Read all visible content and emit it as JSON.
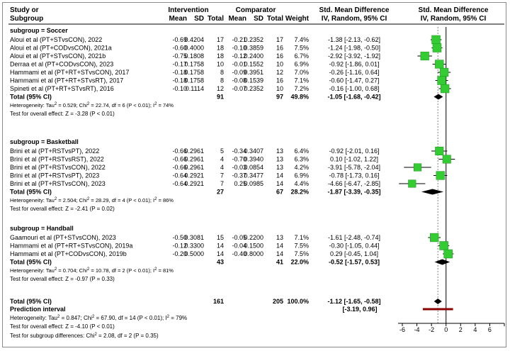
{
  "colors": {
    "study_marker": "#33cc33",
    "pooled_marker": "#000000",
    "prediction_bar": "#8b0000",
    "null_line": "#000000",
    "overall_line": "#808080"
  },
  "headers": {
    "study_1": "Study or",
    "study_2": "Subgroup",
    "intervention": "Intervention",
    "comparator": "Comparator",
    "mean_i": "Mean",
    "sd_i": "SD",
    "total_i": "Total",
    "mean_c": "Mean",
    "sd_c": "SD",
    "total_c": "Total",
    "weight": "Weight",
    "smd_text_1": "Std. Mean Difference",
    "smd_text_2": "IV, Random, 95% CI",
    "smd_plot_1": "Std. Mean Difference",
    "smd_plot_2": "IV, Random, 95% CI"
  },
  "chart_data": {
    "type": "forest",
    "xlim": [
      -6,
      8
    ],
    "x_ticks": [
      -6,
      -4,
      -2,
      0,
      2,
      4,
      6,
      8
    ],
    "x_tick_labels": [
      "-6",
      "-4",
      "-2",
      "0",
      "2",
      "4",
      "6",
      "8"
    ],
    "null_line": 0,
    "overall_line": -1.12,
    "subgroups": [
      {
        "title": "subgroup = Soccer",
        "studies": [
          {
            "name": "Aloui et al (PT+STvsCON), 2022",
            "mean_i": "-0.69",
            "sd_i": "0.4204",
            "n_i": "17",
            "mean_c": "-0.21",
            "sd_c": "0.2352",
            "n_c": "17",
            "weight": "7.4%",
            "smd": -1.38,
            "lo": -2.13,
            "hi": -0.62,
            "ci_text": "-1.38 [-2.13, -0.62]"
          },
          {
            "name": "Aloui et al (PT+CODvsCON), 2021a",
            "mean_i": "-0.60",
            "sd_i": "0.4000",
            "n_i": "18",
            "mean_c": "-0.10",
            "sd_c": "0.3859",
            "n_c": "16",
            "weight": "7.5%",
            "smd": -1.24,
            "lo": -1.98,
            "hi": -0.5,
            "ci_text": "-1.24 [-1.98, -0.50]"
          },
          {
            "name": "Aloui et al (PT+STvsCON), 2021b",
            "mean_i": "-0.75",
            "sd_i": "0.1808",
            "n_i": "18",
            "mean_c": "-0.12",
            "sd_c": "0.2400",
            "n_c": "16",
            "weight": "6.7%",
            "smd": -2.92,
            "lo": -3.92,
            "hi": -1.92,
            "ci_text": "-2.92 [-3.92, -1.92]"
          },
          {
            "name": "Derraa et al (PT+CODvsCON), 2023",
            "mean_i": "-0.17",
            "sd_i": "0.1758",
            "n_i": "10",
            "mean_c": "-0.01",
            "sd_c": "0.1552",
            "n_c": "10",
            "weight": "6.9%",
            "smd": -0.92,
            "lo": -1.86,
            "hi": 0.01,
            "ci_text": "-0.92 [-1.86, 0.01]"
          },
          {
            "name": "Hammami et al (PT+RT+STvsCON), 2017",
            "mean_i": "-0.18",
            "sd_i": "0.1758",
            "n_i": "8",
            "mean_c": "-0.09",
            "sd_c": "0.3951",
            "n_c": "12",
            "weight": "7.0%",
            "smd": -0.26,
            "lo": -1.16,
            "hi": 0.64,
            "ci_text": "-0.26 [-1.16, 0.64]"
          },
          {
            "name": "Hammami et al (PT+RT+STvsRT), 2017",
            "mean_i": "-0.18",
            "sd_i": "0.1758",
            "n_i": "8",
            "mean_c": "-0.08",
            "sd_c": "0.1539",
            "n_c": "16",
            "weight": "7.1%",
            "smd": -0.6,
            "lo": -1.47,
            "hi": 0.27,
            "ci_text": "-0.60 [-1.47, 0.27]"
          },
          {
            "name": "Spineti et al (PT+RT+STvsRT), 2016",
            "mean_i": "-0.10",
            "sd_i": "0.1114",
            "n_i": "12",
            "mean_c": "-0.07",
            "sd_c": "0.2352",
            "n_c": "10",
            "weight": "7.2%",
            "smd": -0.16,
            "lo": -1.0,
            "hi": 0.68,
            "ci_text": "-0.16 [-1.00, 0.68]"
          }
        ],
        "total": {
          "label": "Total (95% CI)",
          "n_i": "91",
          "n_c": "97",
          "weight": "49.8%",
          "smd": -1.05,
          "lo": -1.68,
          "hi": -0.42,
          "ci_text": "-1.05 [-1.68, -0.42]"
        },
        "heterogeneity": "Heterogeneity: Tau² = 0.529; Chi² = 22.74, df = 6 (P < 0.01); I² = 74%",
        "overall_effect": "Test for overall effect: Z = -3.28 (P < 0.01)"
      },
      {
        "title": "subgroup = Basketball",
        "studies": [
          {
            "name": "Brini et al (PT+RSTvsPT), 2022",
            "mean_i": "-0.66",
            "sd_i": "0.2961",
            "n_i": "5",
            "mean_c": "-0.34",
            "sd_c": "0.3407",
            "n_c": "13",
            "weight": "6.4%",
            "smd": -0.92,
            "lo": -2.01,
            "hi": 0.16,
            "ci_text": "-0.92 [-2.01, 0.16]"
          },
          {
            "name": "Brini et al (PT+RSTvsRST), 2022",
            "mean_i": "-0.66",
            "sd_i": "0.2961",
            "n_i": "4",
            "mean_c": "-0.70",
            "sd_c": "0.3940",
            "n_c": "13",
            "weight": "6.3%",
            "smd": 0.1,
            "lo": -1.02,
            "hi": 1.22,
            "ci_text": "0.10 [-1.02, 1.22]"
          },
          {
            "name": "Brini et al (PT+RSTvsCON), 2022",
            "mean_i": "-0.66",
            "sd_i": "0.2961",
            "n_i": "4",
            "mean_c": "-0.03",
            "sd_c": "0.0854",
            "n_c": "13",
            "weight": "4.2%",
            "smd": -3.91,
            "lo": -5.78,
            "hi": -2.04,
            "ci_text": "-3.91 [-5.78, -2.04]"
          },
          {
            "name": "Brini et al (PT+RSTvsPT), 2023",
            "mean_i": "-0.64",
            "sd_i": "0.2921",
            "n_i": "7",
            "mean_c": "-0.37",
            "sd_c": "0.3477",
            "n_c": "14",
            "weight": "6.9%",
            "smd": -0.78,
            "lo": -1.73,
            "hi": 0.16,
            "ci_text": "-0.78 [-1.73, 0.16]"
          },
          {
            "name": "Brini et al (PT+RSTvsCON), 2023",
            "mean_i": "-0.64",
            "sd_i": "0.2921",
            "n_i": "7",
            "mean_c": "0.25",
            "sd_c": "0.0985",
            "n_c": "14",
            "weight": "4.4%",
            "smd": -4.66,
            "lo": -6.47,
            "hi": -2.85,
            "ci_text": "-4.66 [-6.47, -2.85]"
          }
        ],
        "total": {
          "label": "Total (95% CI)",
          "n_i": "27",
          "n_c": "67",
          "weight": "28.2%",
          "smd": -1.87,
          "lo": -3.39,
          "hi": -0.35,
          "ci_text": "-1.87 [-3.39, -0.35]"
        },
        "heterogeneity": "Heterogeneity: Tau² = 2.504; Chi² = 28.29, df = 4 (P < 0.01); I² = 86%",
        "overall_effect": "Test for overall effect: Z = -2.41 (P = 0.02)"
      },
      {
        "title": "subgroup = Handball",
        "studies": [
          {
            "name": "Gaamouri et al (PT+STvsCON), 2023",
            "mean_i": "-0.50",
            "sd_i": "0.3081",
            "n_i": "15",
            "mean_c": "-0.05",
            "sd_c": "0.2200",
            "n_c": "13",
            "weight": "7.1%",
            "smd": -1.61,
            "lo": -2.48,
            "hi": -0.74,
            "ci_text": "-1.61 [-2.48, -0.74]"
          },
          {
            "name": "Hammami et al (PT+RT+STvsCON), 2019a",
            "mean_i": "-0.12",
            "sd_i": "0.3300",
            "n_i": "14",
            "mean_c": "-0.04",
            "sd_c": "0.1500",
            "n_c": "14",
            "weight": "7.5%",
            "smd": -0.3,
            "lo": -1.05,
            "hi": 0.44,
            "ci_text": "-0.30 [-1.05, 0.44]"
          },
          {
            "name": "Hammami et al (PT+CODvsCON), 2019b",
            "mean_i": "-0.20",
            "sd_i": "0.5000",
            "n_i": "14",
            "mean_c": "-0.40",
            "sd_c": "0.8000",
            "n_c": "14",
            "weight": "7.5%",
            "smd": 0.29,
            "lo": -0.45,
            "hi": 1.04,
            "ci_text": "0.29 [-0.45, 1.04]"
          }
        ],
        "total": {
          "label": "Total (95% CI)",
          "n_i": "43",
          "n_c": "41",
          "weight": "22.0%",
          "smd": -0.52,
          "lo": -1.57,
          "hi": 0.53,
          "ci_text": "-0.52 [-1.57, 0.53]"
        },
        "heterogeneity": "Heterogeneity: Tau² = 0.704; Chi² = 10.78, df = 2 (P < 0.01); I² = 81%",
        "overall_effect": "Test for overall effect: Z = -0.97 (P = 0.33)"
      }
    ],
    "overall": {
      "label": "Total (95% CI)",
      "n_i": "161",
      "n_c": "205",
      "weight": "100.0%",
      "smd": -1.12,
      "lo": -1.65,
      "hi": -0.58,
      "ci_text": "-1.12 [-1.65, -0.58]"
    },
    "prediction": {
      "label": "Prediction interval",
      "lo": -3.19,
      "hi": 0.96,
      "ci_text": "[-3.19, 0.96]"
    },
    "footer": [
      "Heterogeneity: Tau² = 0.847; Chi² = 67.90, df = 14 (P < 0.01); I² = 79%",
      "Test for overall effect: Z = -4.10 (P < 0.01)",
      "Test for subgroup differences: Chi² = 2.08, df = 2 (P = 0.35)"
    ]
  }
}
